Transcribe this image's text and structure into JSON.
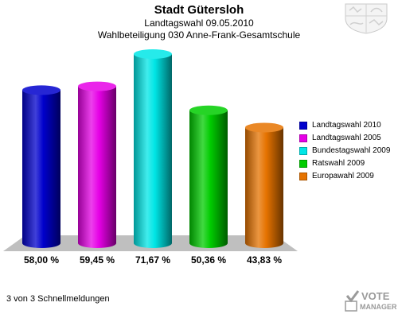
{
  "header": {
    "title": "Stadt Gütersloh",
    "subtitle": "Landtagswahl 09.05.2010",
    "subtitle2": "Wahlbeteiligung 030 Anne-Frank-Gesamtschule"
  },
  "chart_data": {
    "type": "bar",
    "title": "Stadt Gütersloh",
    "categories": [
      "Landtagswahl 2010",
      "Landtagswahl 2005",
      "Bundestagswahl 2009",
      "Ratswahl 2009",
      "Europawahl 2009"
    ],
    "values": [
      58.0,
      59.45,
      71.67,
      50.36,
      43.83
    ],
    "value_labels": [
      "58,00 %",
      "59,45 %",
      "71,67 %",
      "50,36 %",
      "43,83 %"
    ],
    "colors": [
      "#0000cc",
      "#e600e6",
      "#00e6e6",
      "#00cc00",
      "#e67300"
    ],
    "ylim": [
      0,
      80
    ],
    "legend_position": "right",
    "grid": false
  },
  "footer": {
    "text": "3 von 3 Schnellmeldungen"
  },
  "logo": {
    "line1": "VOTE",
    "line2": "MANAGER"
  },
  "icons": {
    "crest": "nrw-crest-icon",
    "logo": "vote-manager-logo-icon"
  }
}
